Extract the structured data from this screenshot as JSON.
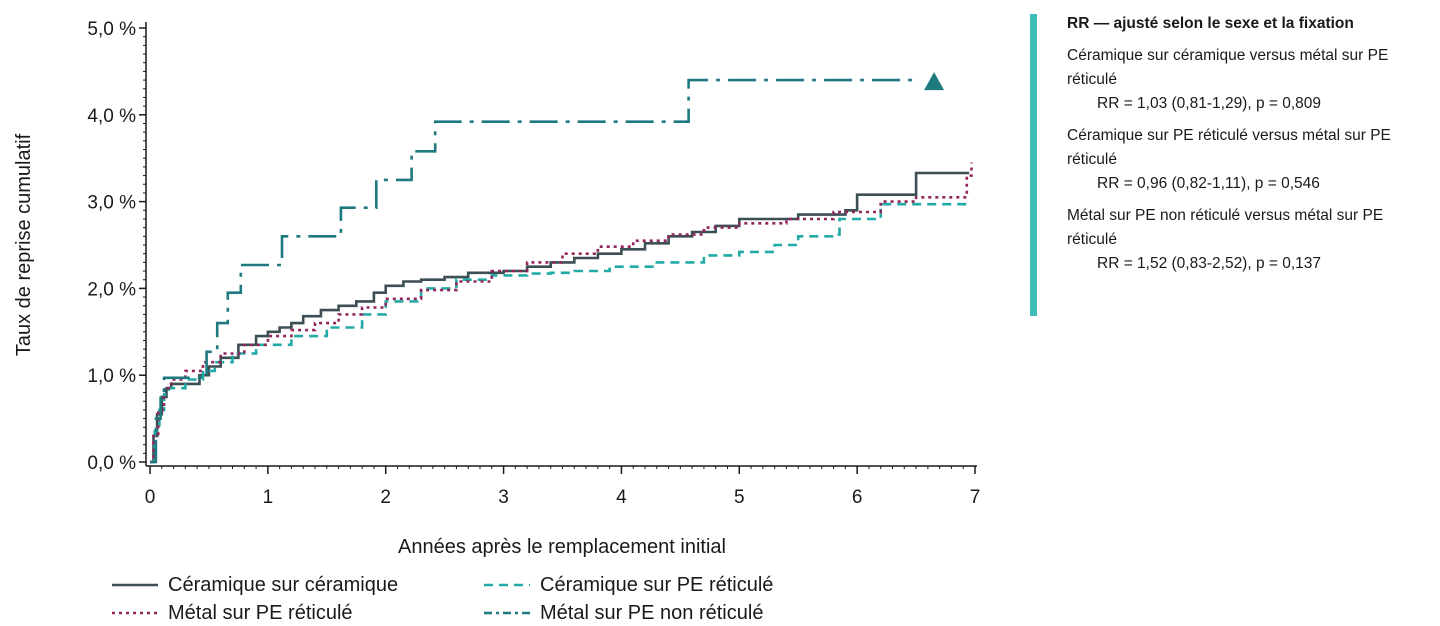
{
  "chart_data": {
    "type": "line",
    "xlabel": "Années après le remplacement initial",
    "ylabel": "Taux de reprise cumulatif",
    "xlim": [
      0,
      7
    ],
    "ylim": [
      0,
      5
    ],
    "x_ticks": [
      "0",
      "1",
      "2",
      "3",
      "4",
      "5",
      "6",
      "7"
    ],
    "y_ticks": [
      "0,0 %",
      "1,0 %",
      "2,0 %",
      "3,0 %",
      "4,0 %",
      "5,0 %"
    ],
    "grid": false,
    "legend_position": "bottom",
    "series": [
      {
        "name": "Céramique sur céramique",
        "color": "#3b4f55",
        "dash": "solid",
        "points": [
          [
            0,
            0
          ],
          [
            0.03,
            0.3
          ],
          [
            0.06,
            0.55
          ],
          [
            0.1,
            0.75
          ],
          [
            0.14,
            0.85
          ],
          [
            0.18,
            0.9
          ],
          [
            0.35,
            0.9
          ],
          [
            0.42,
            1.0
          ],
          [
            0.5,
            1.1
          ],
          [
            0.6,
            1.2
          ],
          [
            0.75,
            1.35
          ],
          [
            0.9,
            1.45
          ],
          [
            1.0,
            1.5
          ],
          [
            1.1,
            1.55
          ],
          [
            1.2,
            1.6
          ],
          [
            1.3,
            1.68
          ],
          [
            1.45,
            1.75
          ],
          [
            1.6,
            1.8
          ],
          [
            1.75,
            1.85
          ],
          [
            1.9,
            1.95
          ],
          [
            2.0,
            2.03
          ],
          [
            2.15,
            2.08
          ],
          [
            2.3,
            2.1
          ],
          [
            2.5,
            2.13
          ],
          [
            2.7,
            2.18
          ],
          [
            3.0,
            2.2
          ],
          [
            3.2,
            2.25
          ],
          [
            3.4,
            2.3
          ],
          [
            3.6,
            2.35
          ],
          [
            3.8,
            2.4
          ],
          [
            4.0,
            2.45
          ],
          [
            4.2,
            2.52
          ],
          [
            4.4,
            2.6
          ],
          [
            4.6,
            2.65
          ],
          [
            4.8,
            2.72
          ],
          [
            5.0,
            2.8
          ],
          [
            5.5,
            2.85
          ],
          [
            5.9,
            2.9
          ],
          [
            6.0,
            3.08
          ],
          [
            6.3,
            3.08
          ],
          [
            6.5,
            3.33
          ],
          [
            6.95,
            3.33
          ]
        ]
      },
      {
        "name": "Céramique sur PE réticulé",
        "color": "#22aba6",
        "dash": "dashed",
        "points": [
          [
            0,
            0
          ],
          [
            0.04,
            0.35
          ],
          [
            0.08,
            0.6
          ],
          [
            0.12,
            0.78
          ],
          [
            0.16,
            0.85
          ],
          [
            0.3,
            0.95
          ],
          [
            0.45,
            1.05
          ],
          [
            0.55,
            1.15
          ],
          [
            0.7,
            1.25
          ],
          [
            0.9,
            1.35
          ],
          [
            1.2,
            1.45
          ],
          [
            1.5,
            1.55
          ],
          [
            1.8,
            1.7
          ],
          [
            2.0,
            1.85
          ],
          [
            2.3,
            2.0
          ],
          [
            2.6,
            2.1
          ],
          [
            2.9,
            2.15
          ],
          [
            3.2,
            2.17
          ],
          [
            3.4,
            2.18
          ],
          [
            3.6,
            2.2
          ],
          [
            3.9,
            2.25
          ],
          [
            4.3,
            2.3
          ],
          [
            4.7,
            2.38
          ],
          [
            5.0,
            2.42
          ],
          [
            5.3,
            2.5
          ],
          [
            5.5,
            2.6
          ],
          [
            5.8,
            2.62
          ],
          [
            5.85,
            2.8
          ],
          [
            6.1,
            2.8
          ],
          [
            6.2,
            2.97
          ],
          [
            6.95,
            2.97
          ]
        ]
      },
      {
        "name": "Métal sur PE réticulé",
        "color": "#93255d",
        "dash": "dotted",
        "points": [
          [
            0,
            0
          ],
          [
            0.03,
            0.3
          ],
          [
            0.07,
            0.6
          ],
          [
            0.12,
            0.85
          ],
          [
            0.18,
            0.95
          ],
          [
            0.3,
            1.05
          ],
          [
            0.45,
            1.15
          ],
          [
            0.6,
            1.25
          ],
          [
            0.8,
            1.35
          ],
          [
            1.0,
            1.45
          ],
          [
            1.2,
            1.52
          ],
          [
            1.4,
            1.6
          ],
          [
            1.6,
            1.7
          ],
          [
            1.8,
            1.78
          ],
          [
            2.0,
            1.88
          ],
          [
            2.3,
            1.98
          ],
          [
            2.6,
            2.08
          ],
          [
            2.9,
            2.2
          ],
          [
            3.2,
            2.3
          ],
          [
            3.5,
            2.4
          ],
          [
            3.8,
            2.48
          ],
          [
            4.1,
            2.55
          ],
          [
            4.4,
            2.62
          ],
          [
            4.7,
            2.7
          ],
          [
            5.0,
            2.75
          ],
          [
            5.4,
            2.8
          ],
          [
            5.8,
            2.88
          ],
          [
            6.2,
            3.0
          ],
          [
            6.5,
            3.05
          ],
          [
            6.9,
            3.05
          ],
          [
            6.93,
            3.3
          ],
          [
            6.97,
            3.45
          ]
        ]
      },
      {
        "name": "Métal sur PE non réticulé",
        "color": "#1f7a80",
        "dash": "dashdot",
        "points": [
          [
            0,
            0
          ],
          [
            0.05,
            0.5
          ],
          [
            0.09,
            0.8
          ],
          [
            0.12,
            0.97
          ],
          [
            0.45,
            0.97
          ],
          [
            0.48,
            1.27
          ],
          [
            0.55,
            1.27
          ],
          [
            0.57,
            1.6
          ],
          [
            0.64,
            1.6
          ],
          [
            0.66,
            1.95
          ],
          [
            0.75,
            1.95
          ],
          [
            0.77,
            2.27
          ],
          [
            1.1,
            2.27
          ],
          [
            1.12,
            2.6
          ],
          [
            1.6,
            2.6
          ],
          [
            1.62,
            2.93
          ],
          [
            1.9,
            2.93
          ],
          [
            1.92,
            3.25
          ],
          [
            2.2,
            3.25
          ],
          [
            2.22,
            3.58
          ],
          [
            2.4,
            3.58
          ],
          [
            2.42,
            3.92
          ],
          [
            4.55,
            3.92
          ],
          [
            4.57,
            4.4
          ],
          [
            6.5,
            4.4
          ]
        ],
        "end_marker": "triangle"
      }
    ]
  },
  "rr_panel": {
    "title": "RR — ajusté selon le sexe et la fixation",
    "accent_color": "#3dbdb7",
    "comparisons": [
      {
        "label": "Céramique sur céramique versus métal sur PE réticulé",
        "value": "RR = 1,03 (0,81-1,29), p = 0,809"
      },
      {
        "label": "Céramique sur PE réticulé versus métal sur PE réticulé",
        "value": "RR = 0,96 (0,82-1,11), p = 0,546"
      },
      {
        "label": "Métal sur PE non réticulé versus métal sur PE réticulé",
        "value": "RR = 1,52 (0,83-2,52), p = 0,137"
      }
    ]
  }
}
